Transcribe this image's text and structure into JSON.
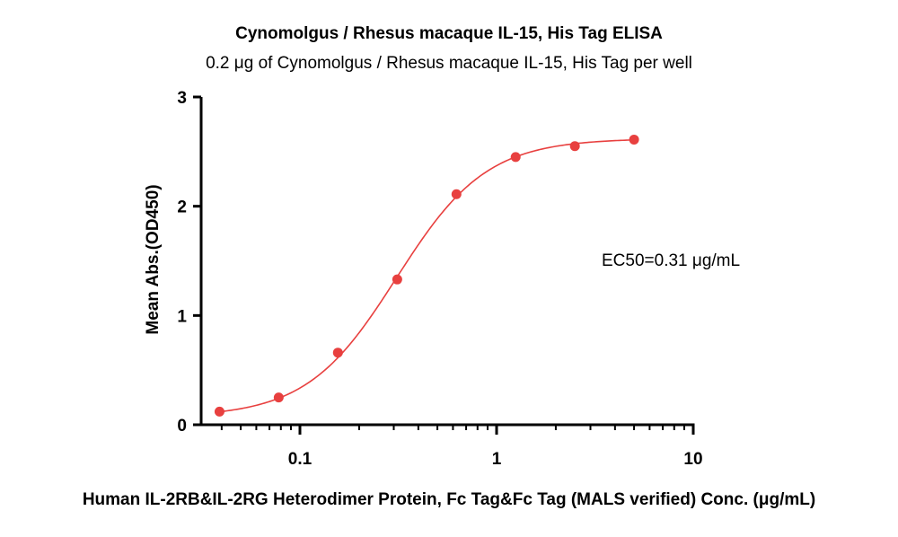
{
  "chart_data": {
    "type": "scatter",
    "title": "Cynomolgus / Rhesus macaque IL-15, His Tag ELISA",
    "subtitle": "0.2 μg of Cynomolgus / Rhesus macaque IL-15, His Tag per well",
    "xlabel": "Human IL-2RB&IL-2RG Heterodimer Protein, Fc Tag&Fc Tag (MALS verified) Conc. (μg/mL)",
    "ylabel": "Mean Abs.(OD450)",
    "xscale": "log",
    "xlim": [
      0.03,
      10
    ],
    "ylim": [
      0,
      3
    ],
    "x_ticks": [
      0.1,
      1,
      10
    ],
    "x_tick_labels": [
      "0.1",
      "1",
      "10"
    ],
    "y_ticks": [
      0,
      1,
      2,
      3
    ],
    "y_tick_labels": [
      "0",
      "1",
      "2",
      "3"
    ],
    "grid": false,
    "color": "#e8403f",
    "series": [
      {
        "x": [
          0.039,
          0.078,
          0.156,
          0.3125,
          0.625,
          1.25,
          2.5,
          5.0
        ],
        "y": [
          0.12,
          0.25,
          0.66,
          1.33,
          2.11,
          2.45,
          2.55,
          2.61
        ]
      }
    ],
    "fit_curve": {
      "model": "4PL",
      "bottom": 0.07,
      "top": 2.62,
      "ec50": 0.31,
      "hill": 1.9
    },
    "annotation": "EC50=0.31 μg/mL"
  }
}
